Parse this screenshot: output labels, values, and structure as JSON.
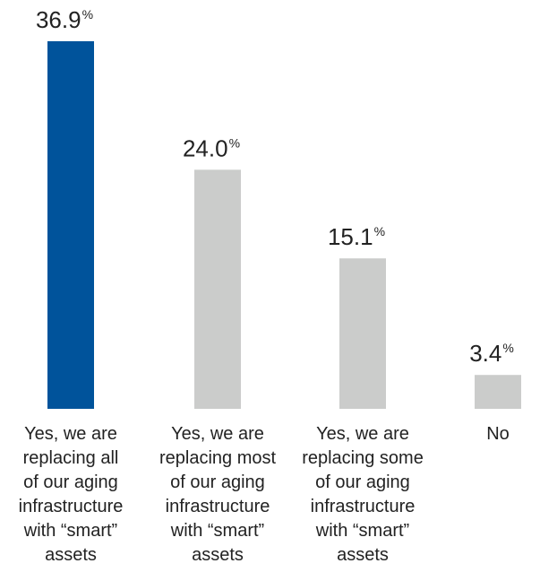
{
  "chart_data": {
    "type": "bar",
    "categories": [
      "Yes, we are replacing all of our aging infrastructure with “smart” assets",
      "Yes, we are replacing most of our aging infrastructure with “smart” assets",
      "Yes, we are replacing some of our aging infrastructure with “smart” assets",
      "No"
    ],
    "category_lines": [
      [
        "Yes, we are",
        "replacing all",
        "of our aging",
        "infrastructure",
        "with “smart”",
        "assets"
      ],
      [
        "Yes, we are",
        "replacing most",
        "of our aging",
        "infrastructure",
        "with “smart”",
        "assets"
      ],
      [
        "Yes, we are",
        "replacing some",
        "of our aging",
        "infrastructure",
        "with “smart”",
        "assets"
      ],
      [
        "No"
      ]
    ],
    "values": [
      36.9,
      24.0,
      15.1,
      3.4
    ],
    "value_labels": [
      "36.9",
      "24.0",
      "15.1",
      "3.4"
    ],
    "unit": "%",
    "ylim": [
      0,
      36.9
    ],
    "grid": false,
    "colors": [
      "#00539B",
      "#CBCCCB",
      "#CBCCCB",
      "#CBCCCB"
    ]
  }
}
